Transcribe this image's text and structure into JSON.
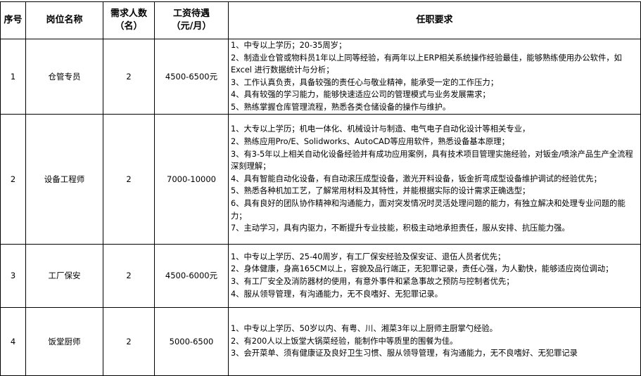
{
  "headers": {
    "no": "序号",
    "position": "岗位名称",
    "headcount": "需求人数（名）",
    "salary": "工资待遇（元/月）",
    "requirements": "任职要求"
  },
  "rows": [
    {
      "no": "1",
      "position": "仓管专员",
      "headcount": "2",
      "salary": "4500-6500元",
      "requirements": [
        "1、中专以上学历；20-35周岁；",
        "2、制造业仓管或物料员1年以上同等经验，有两年以上ERP相关系统操作经验最佳，能够熟练使用办公软件，如 Excel 进行数据统计与分析；",
        "3、工作认真负责，具备较强的责任心与敬业精神，能承受一定的工作压力；",
        "4、具有较强的学习能力，能够快速适应公司的管理模式与业务发展需求；",
        "5、熟练掌握仓库管理流程，熟悉各类仓储设备的操作与维护。"
      ]
    },
    {
      "no": "2",
      "position": "设备工程师",
      "headcount": "2",
      "salary": "7000-10000",
      "requirements": [
        "1、大专以上学历；机电一体化、机械设计与制造、电气电子自动化设计等相关专业，",
        "2、熟练应用Pro/E、Solidworks、AutoCAD等应用软件，熟悉设备基本原理；",
        "3、有3-5年以上相关自动化设备经验并有成功应用案例，具有技术项目管理实施经验，对钣金/喷涂产品生产全流程深刻理解；",
        "4、具有智能自动化设备，有自动滚压成型设备，激光开料设备，钣金折弯成型设备维护调试的经验优先；",
        "5、熟悉各种机加工艺，了解常用材料及其特性，并能根据实际的设计需求正确选型；",
        "6、具有良好的团队协作精神和沟通能力，面对突发情况时灵活处理问题的能力，有独立解决和处理专业问题的能力；",
        "7、主动学习，具有内驱力，不断提升专业技能，积极主动地承担责任，服从安排、抗压能力强。"
      ]
    },
    {
      "no": "3",
      "position": "工厂保安",
      "headcount": "2",
      "salary": "4500-6000元",
      "requirements": [
        "1、中专以上学历、25-40周岁，有工厂保安经验及保安证、退伍人员者优先；",
        "2、身体健康，身高165CM以上，容貌及品行端正，无犯罪记录，责任心强，为人勤快，能够适应岗位调动；",
        "3、有工厂安全及消防器材的使用，有意外事件和紧急事故之预防与控制者优先；",
        "4、服从领导管理，有沟通能力，无不良嗜好、无犯罪记录。"
      ]
    },
    {
      "no": "4",
      "position": "饭堂厨师",
      "headcount": "2",
      "salary": "5000-6500",
      "requirements": [
        "1、中专以上学历、50岁以内、有粤、川、湘菜3年以上厨师主厨掌勺经验。",
        "2、有200人以上饭堂大锅菜经验，能制作中等质里的围餐为佳。",
        "3、会开菜单、须有健康证及良好卫生习惯、服从领导管理，有沟通能力，无不良嗜好、无犯罪记录"
      ]
    }
  ]
}
